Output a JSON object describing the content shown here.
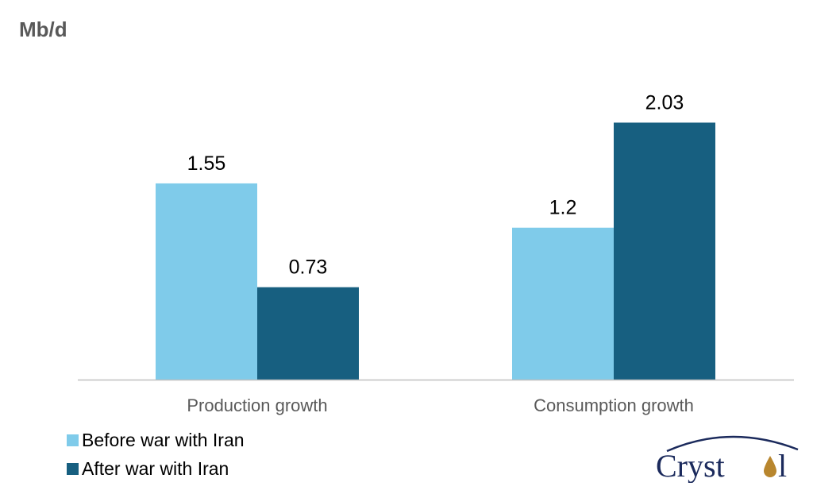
{
  "chart_data": {
    "type": "bar",
    "ylabel": "Mb/d",
    "categories": [
      "Production growth",
      "Consumption growth"
    ],
    "series": [
      {
        "name": "Before war with Iran",
        "color": "#7FCBEA",
        "values": [
          1.55,
          1.2
        ],
        "labels": [
          "1.55",
          "1.2"
        ]
      },
      {
        "name": "After war with Iran",
        "color": "#175F80",
        "values": [
          0.73,
          2.03
        ],
        "labels": [
          "0.73",
          "2.03"
        ]
      }
    ],
    "ylim": [
      0,
      2.3
    ],
    "grid": false,
    "legend_position": "bottom-left"
  },
  "logo": {
    "text": "Crystol"
  }
}
